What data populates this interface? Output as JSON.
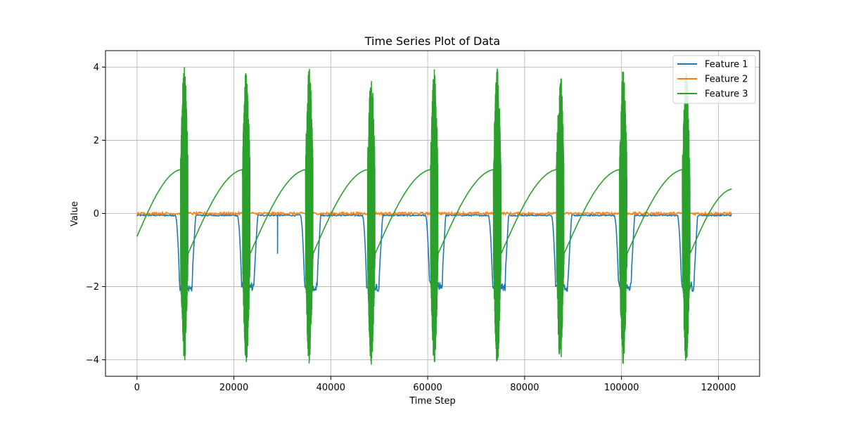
{
  "chart_data": {
    "type": "line",
    "title": "Time Series Plot of Data",
    "xlabel": "Time Step",
    "ylabel": "Value",
    "xlim": [
      -6500,
      128500
    ],
    "ylim": [
      -4.45,
      4.45
    ],
    "xticks": [
      0,
      20000,
      40000,
      60000,
      80000,
      100000,
      120000
    ],
    "yticks": [
      -4,
      -2,
      0,
      2,
      4
    ],
    "ytick_labels": [
      "−4",
      "−2",
      "0",
      "2",
      "4"
    ],
    "grid": true,
    "legend_position": "top-right",
    "series": [
      {
        "name": "Feature 1",
        "color": "#1f77b4"
      },
      {
        "name": "Feature 2",
        "color": "#ff7f0e"
      },
      {
        "name": "Feature 3",
        "color": "#2ca02c"
      }
    ],
    "cycle": {
      "x_start": 0,
      "x_end": 122800,
      "burst_centers": [
        10000,
        22800,
        35800,
        48600,
        61600,
        74600,
        87600,
        100600,
        113600
      ],
      "feature1_baseline": -0.05,
      "feature1_dip": -2.0,
      "feature2_baseline": 0.0,
      "feature3_ramp_low": -1.1,
      "feature3_ramp_high": 1.2,
      "feature3_start": -0.63,
      "feature3_end": 0.67,
      "feature3_burst_max": 4.0,
      "feature3_burst_min": -4.15,
      "feature1_spike": {
        "x": 29000,
        "y": -1.1
      }
    }
  }
}
